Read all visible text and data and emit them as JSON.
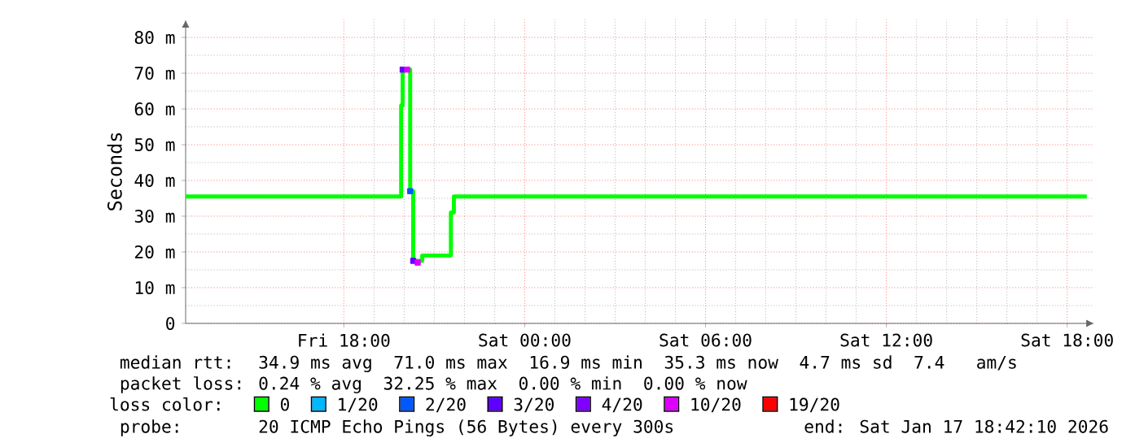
{
  "chart_data": {
    "type": "step",
    "ylabel": "Seconds",
    "legend_title": "loss color:",
    "xlim": [
      "2026-01-16T12:45",
      "2026-01-17T18:54"
    ],
    "ylim": [
      0,
      85
    ],
    "xticks": [
      {
        "value": "2026-01-16T18:00",
        "label": "Fri 18:00"
      },
      {
        "value": "2026-01-17T00:00",
        "label": "Sat 00:00"
      },
      {
        "value": "2026-01-17T06:00",
        "label": "Sat 06:00"
      },
      {
        "value": "2026-01-17T12:00",
        "label": "Sat 12:00"
      },
      {
        "value": "2026-01-17T18:00",
        "label": "Sat 18:00"
      }
    ],
    "yticks": [
      0,
      {
        "value": 10,
        "label": "10 m"
      },
      {
        "value": 20,
        "label": "20 m"
      },
      {
        "value": 30,
        "label": "30 m"
      },
      {
        "value": 40,
        "label": "40 m"
      },
      {
        "value": 50,
        "label": "50 m"
      },
      {
        "value": 60,
        "label": "60 m"
      },
      {
        "value": 70,
        "label": "70 m"
      },
      {
        "value": 80,
        "label": "80 m"
      }
    ],
    "grid": true,
    "legend": "bottom",
    "series": [
      {
        "name": "0",
        "color": "#00ff00",
        "x": [
          "2026-01-16T12:45",
          "2026-01-16T19:54",
          "2026-01-16T19:57",
          "2026-01-16T20:03",
          "2026-01-16T20:12",
          "2026-01-16T20:18",
          "2026-01-16T20:36",
          "2026-01-16T21:33",
          "2026-01-16T21:39",
          "2026-01-17T18:39"
        ],
        "values": [
          35.5,
          61,
          71,
          71,
          37,
          17.5,
          19,
          31,
          35.5,
          35.5
        ]
      },
      {
        "name": "1/20",
        "type": "scatter",
        "color": "#00b8ff"
      },
      {
        "name": "2/20",
        "type": "scatter",
        "color": "#0059ff",
        "x": [
          "2026-01-16T20:12"
        ],
        "values": [
          37
        ]
      },
      {
        "name": "3/20",
        "type": "scatter",
        "color": "#5e00ff",
        "x": [
          "2026-01-16T19:57",
          "2026-01-16T20:18"
        ],
        "values": [
          71,
          17.5
        ]
      },
      {
        "name": "4/20",
        "type": "scatter",
        "color": "#7e00ff"
      },
      {
        "name": "10/20",
        "type": "scatter",
        "color": "#dd00ff",
        "x": [
          "2026-01-16T20:06",
          "2026-01-16T20:27"
        ],
        "values": [
          71,
          17
        ]
      },
      {
        "name": "19/20",
        "type": "scatter",
        "color": "#ff0000"
      }
    ],
    "annotations": [
      "median rtt:",
      "34.9 ms avg  71.0 ms max  16.9 ms min  35.3 ms now  4.7 ms sd  7.4   am/s",
      "packet loss:",
      "0.24 % avg  32.25 % max  0.00 % min  0.00 % now",
      "probe:",
      "20 ICMP Echo Pings (56 Bytes) every 300s",
      "end: Sat Jan 17 18:42:10 2026"
    ]
  }
}
